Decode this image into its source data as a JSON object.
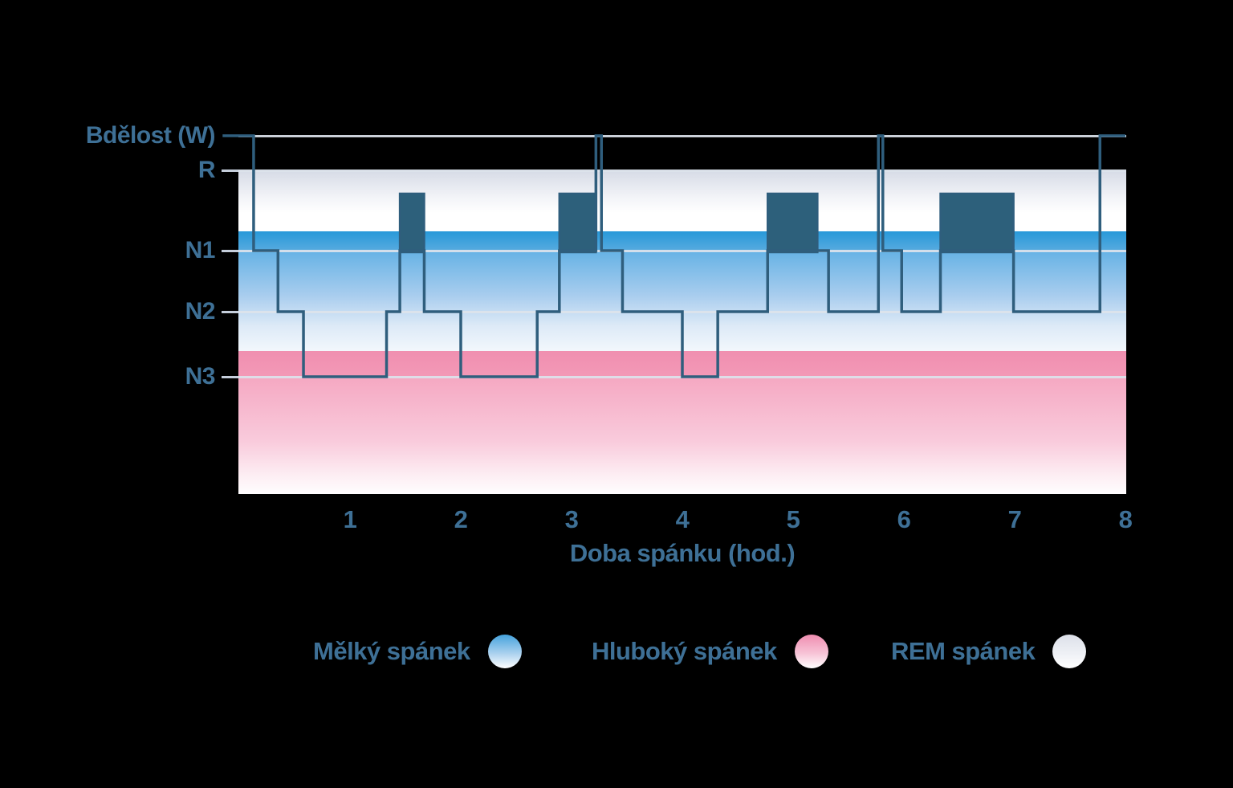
{
  "colors": {
    "label_text": "#3e7096",
    "line": "#2f5e7d",
    "rem_block": "#2d607b",
    "grid": "#dce3ec",
    "tick": "#c5cedb",
    "background": "#000000",
    "light_sleep_band_top": "#2899d9",
    "light_sleep_band_fade": "#65b2e5",
    "deep_sleep_band": "#f08fb0",
    "deep_sleep_band_fade": "#f5a8c2",
    "rem_band": "#d6dbe6"
  },
  "chart_data": {
    "type": "line",
    "subtype": "hypnogram-step",
    "title": "",
    "xlabel": "Doba spánku (hod.)",
    "ylabel": "",
    "xlim": [
      0,
      8
    ],
    "x_ticks": [
      1,
      2,
      3,
      4,
      5,
      6,
      7,
      8
    ],
    "grid": "horizontal-only",
    "y_levels": [
      {
        "id": "W",
        "label": "Bdělost (W)"
      },
      {
        "id": "R",
        "label": "R"
      },
      {
        "id": "N1",
        "label": "N1"
      },
      {
        "id": "N2",
        "label": "N2"
      },
      {
        "id": "N3",
        "label": "N3"
      }
    ],
    "segments": [
      {
        "stage": "W",
        "start": -0.15,
        "end": 0.13
      },
      {
        "stage": "N1",
        "start": 0.13,
        "end": 0.35
      },
      {
        "stage": "N2",
        "start": 0.35,
        "end": 0.58
      },
      {
        "stage": "N3",
        "start": 0.58,
        "end": 1.33
      },
      {
        "stage": "N2",
        "start": 1.33,
        "end": 1.45
      },
      {
        "stage": "N1",
        "start": 1.45,
        "end": 1.67
      },
      {
        "stage": "N2",
        "start": 1.67,
        "end": 2.0
      },
      {
        "stage": "N3",
        "start": 2.0,
        "end": 2.69
      },
      {
        "stage": "N2",
        "start": 2.69,
        "end": 2.89
      },
      {
        "stage": "N1",
        "start": 2.89,
        "end": 3.22
      },
      {
        "stage": "W",
        "start": 3.22,
        "end": 3.27
      },
      {
        "stage": "N1",
        "start": 3.27,
        "end": 3.46
      },
      {
        "stage": "N2",
        "start": 3.46,
        "end": 4.0
      },
      {
        "stage": "N3",
        "start": 4.0,
        "end": 4.32
      },
      {
        "stage": "N2",
        "start": 4.32,
        "end": 4.77
      },
      {
        "stage": "N1",
        "start": 4.77,
        "end": 5.32
      },
      {
        "stage": "N2",
        "start": 5.32,
        "end": 5.77
      },
      {
        "stage": "W",
        "start": 5.77,
        "end": 5.81
      },
      {
        "stage": "N1",
        "start": 5.81,
        "end": 5.98
      },
      {
        "stage": "N2",
        "start": 5.98,
        "end": 6.33
      },
      {
        "stage": "N1",
        "start": 6.33,
        "end": 6.99
      },
      {
        "stage": "N2",
        "start": 6.99,
        "end": 7.77
      },
      {
        "stage": "W",
        "start": 7.77,
        "end": 8.0
      }
    ],
    "rem_episodes": [
      {
        "start": 1.45,
        "end": 1.67
      },
      {
        "start": 2.89,
        "end": 3.22
      },
      {
        "start": 4.77,
        "end": 5.22
      },
      {
        "start": 6.33,
        "end": 6.99
      }
    ],
    "legend": {
      "position": "bottom",
      "entries": [
        {
          "label": "Mělký spánek",
          "swatch": "light"
        },
        {
          "label": "Hluboký spánek",
          "swatch": "deep"
        },
        {
          "label": "REM spánek",
          "swatch": "rem"
        }
      ]
    }
  }
}
